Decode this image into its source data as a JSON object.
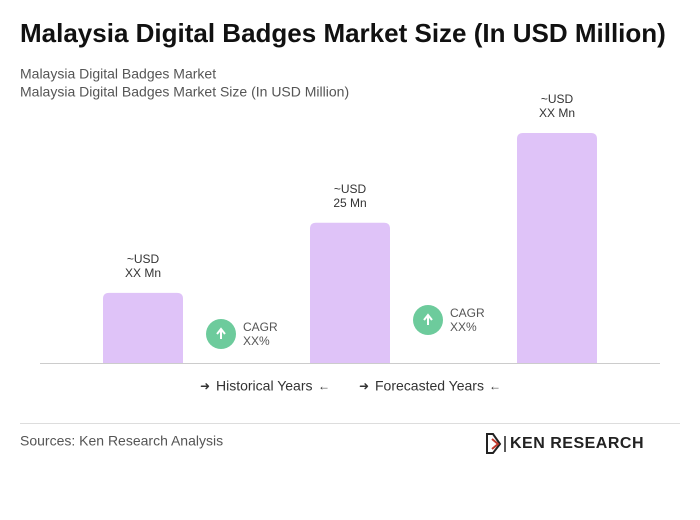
{
  "chart_data": {
    "type": "bar",
    "title": "Malaysia Digital Badges Market Size (In USD Million)",
    "subtitle": [
      "Malaysia Digital Badges Market",
      "Malaysia Digital Badges Market Size (In USD Million)"
    ],
    "categories": [
      null,
      null,
      null
    ],
    "values": [
      12.5,
      25,
      41
    ],
    "value_labels": [
      [
        "~USD",
        "XX Mn"
      ],
      [
        "~USD",
        "25 Mn"
      ],
      [
        "~USD",
        "XX Mn"
      ]
    ],
    "color": "#dfc3f8",
    "cagr": [
      {
        "label": "CAGR",
        "value": "XX%"
      },
      {
        "label": "CAGR",
        "value": "XX%"
      }
    ],
    "cagr_color": "#6dcb9c",
    "legend": [
      "Historical Years",
      "Forecasted Years"
    ],
    "source": "Sources: Ken Research Analysis",
    "logo": "KEN RESEARCH"
  }
}
